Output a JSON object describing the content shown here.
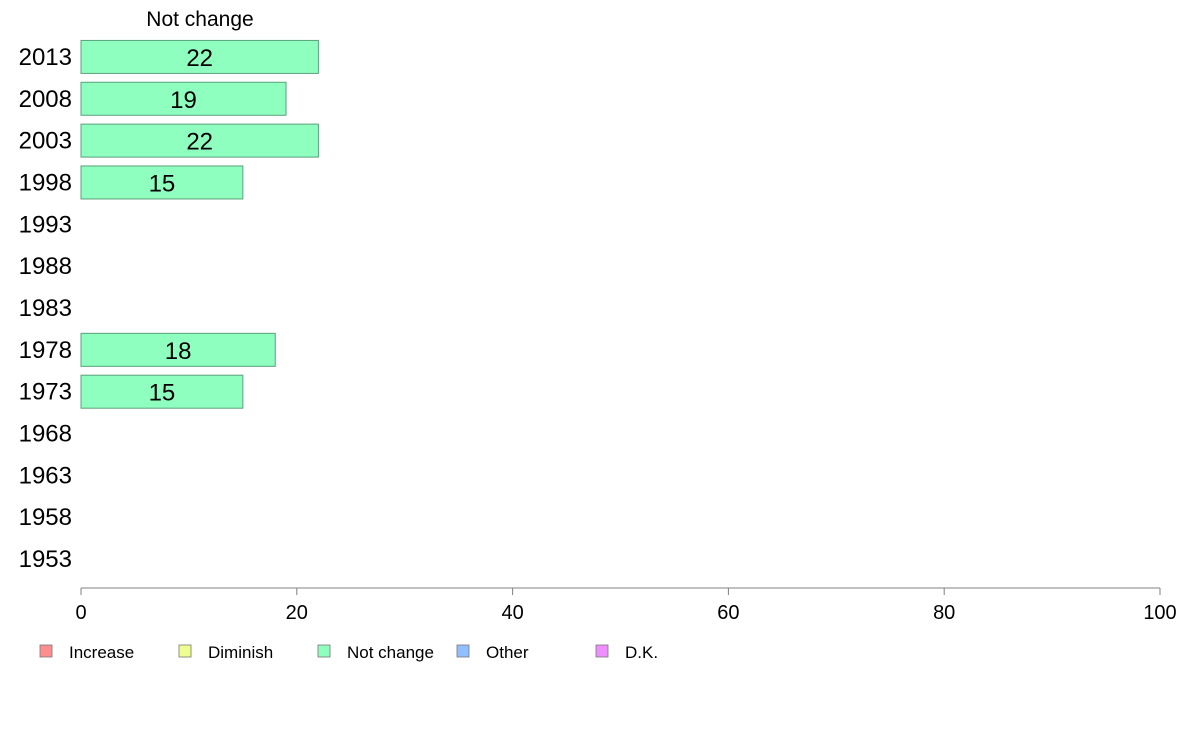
{
  "chart_data": {
    "type": "bar",
    "orientation": "horizontal",
    "title": "Not change",
    "categories": [
      "2013",
      "2008",
      "2003",
      "1998",
      "1993",
      "1988",
      "1983",
      "1978",
      "1973",
      "1968",
      "1963",
      "1958",
      "1953"
    ],
    "series": [
      {
        "name": "Not change",
        "color": "#8fffbf",
        "values": [
          22,
          19,
          22,
          15,
          null,
          null,
          null,
          18,
          15,
          null,
          null,
          null,
          null
        ]
      }
    ],
    "xlim": [
      0,
      100
    ],
    "xticks": [
      0,
      20,
      40,
      60,
      80,
      100
    ],
    "grid": false,
    "legend_position": "bottom-left",
    "legend": [
      {
        "label": "Increase",
        "color": "#ff8f8f"
      },
      {
        "label": "Diminish",
        "color": "#efff8f"
      },
      {
        "label": "Not change",
        "color": "#8fffbf"
      },
      {
        "label": "Other",
        "color": "#8fbfff"
      },
      {
        "label": "D.K.",
        "color": "#ef8fff"
      }
    ]
  }
}
